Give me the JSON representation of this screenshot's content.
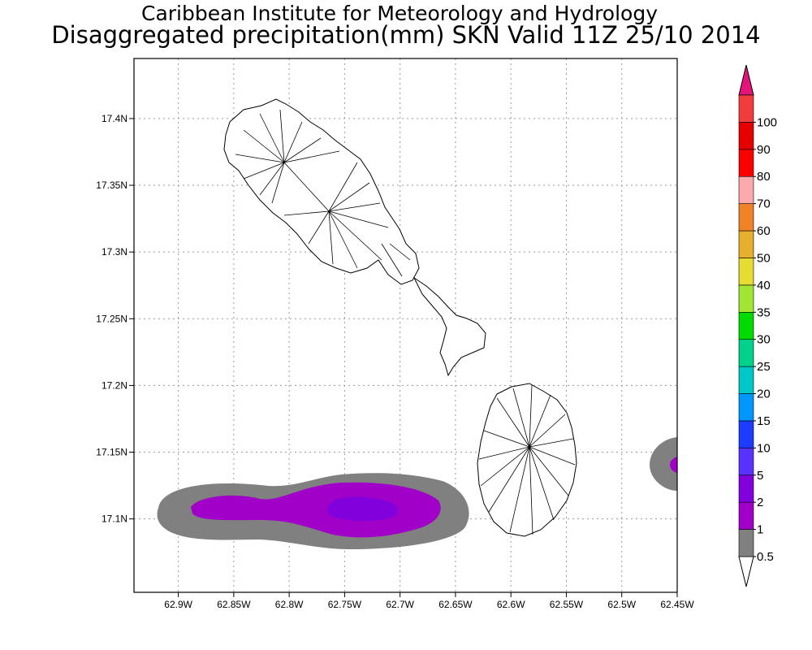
{
  "title": {
    "line1": "Caribbean Institute for Meteorology and Hydrology",
    "line2": "Disaggregated precipitation(mm) SKN Valid 11Z 25/10 2014"
  },
  "map": {
    "lon_range": [
      -62.94,
      -62.45
    ],
    "lat_range": [
      17.045,
      17.445
    ],
    "grid": "dotted",
    "x_ticks": [
      {
        "value": -62.9,
        "label": "62.9W"
      },
      {
        "value": -62.85,
        "label": "62.85W"
      },
      {
        "value": -62.8,
        "label": "62.8W"
      },
      {
        "value": -62.75,
        "label": "62.75W"
      },
      {
        "value": -62.7,
        "label": "62.7W"
      },
      {
        "value": -62.65,
        "label": "62.65W"
      },
      {
        "value": -62.6,
        "label": "62.6W"
      },
      {
        "value": -62.55,
        "label": "62.55W"
      },
      {
        "value": -62.5,
        "label": "62.5W"
      },
      {
        "value": -62.45,
        "label": "62.45W"
      }
    ],
    "y_ticks": [
      {
        "value": 17.4,
        "label": "17.4N"
      },
      {
        "value": 17.35,
        "label": "17.35N"
      },
      {
        "value": 17.3,
        "label": "17.3N"
      },
      {
        "value": 17.25,
        "label": "17.25N"
      },
      {
        "value": 17.2,
        "label": "17.2N"
      },
      {
        "value": 17.15,
        "label": "17.15N"
      },
      {
        "value": 17.1,
        "label": "17.1N"
      }
    ]
  },
  "colorbar": {
    "levels": [
      {
        "label": "0.5",
        "color": "#808080"
      },
      {
        "label": "1",
        "color": "#a000c8"
      },
      {
        "label": "2",
        "color": "#8200dc"
      },
      {
        "label": "5",
        "color": "#5a32ff"
      },
      {
        "label": "10",
        "color": "#1e3cff"
      },
      {
        "label": "15",
        "color": "#0096ff"
      },
      {
        "label": "20",
        "color": "#00c8c8"
      },
      {
        "label": "25",
        "color": "#00d28c"
      },
      {
        "label": "30",
        "color": "#00dc00"
      },
      {
        "label": "35",
        "color": "#a0e632"
      },
      {
        "label": "40",
        "color": "#e6dc32"
      },
      {
        "label": "50",
        "color": "#e6af2d"
      },
      {
        "label": "60",
        "color": "#f08228"
      },
      {
        "label": "70",
        "color": "#faaaaa"
      },
      {
        "label": "80",
        "color": "#fa0000"
      },
      {
        "label": "90",
        "color": "#e60000"
      },
      {
        "label": "100",
        "color": "#f03c3c"
      }
    ],
    "top_triangle_color": "#e6147a",
    "bottom_triangle_color": "#ffffff"
  }
}
